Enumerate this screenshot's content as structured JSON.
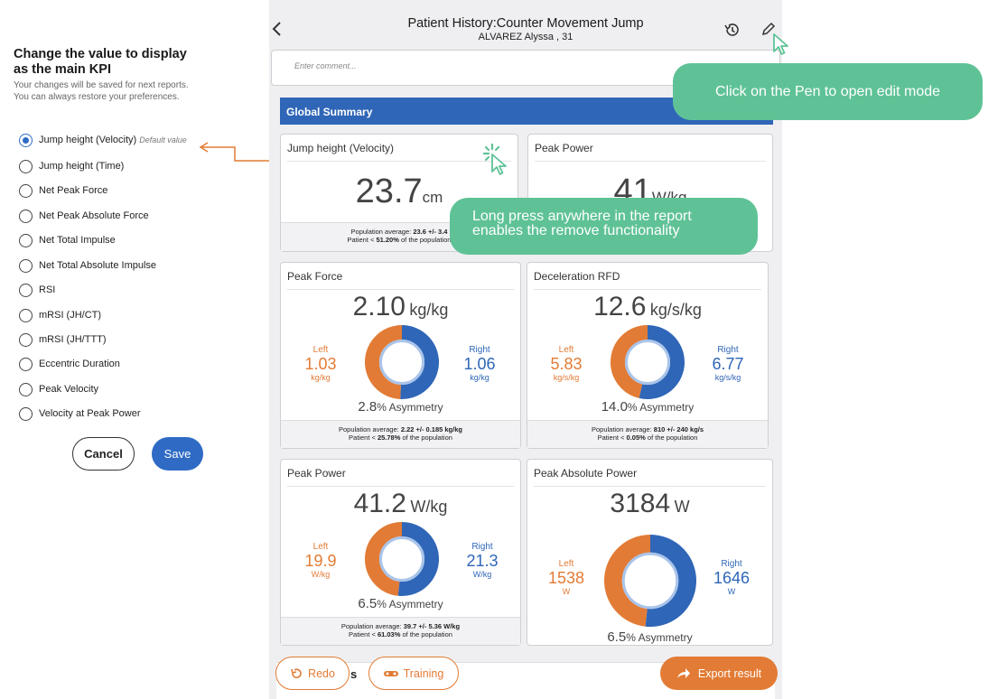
{
  "settings_panel": {
    "title": "Change the value to display as the main KPI",
    "description": "Your changes will be saved for next reports. You can always restore your preferences.",
    "options": [
      {
        "label": "Jump height (Velocity)",
        "note": "Default value",
        "selected": true
      },
      {
        "label": "Jump height (Time)"
      },
      {
        "label": "Net Peak Force"
      },
      {
        "label": "Net Peak Absolute Force"
      },
      {
        "label": "Net Total Impulse"
      },
      {
        "label": "Net Total Absolute Impulse"
      },
      {
        "label": "RSI"
      },
      {
        "label": "mRSI (JH/CT)"
      },
      {
        "label": "mRSI (JH/TTT)"
      },
      {
        "label": "Eccentric Duration"
      },
      {
        "label": "Peak Velocity"
      },
      {
        "label": "Velocity at Peak Power"
      }
    ],
    "cancel_label": "Cancel",
    "save_label": "Save"
  },
  "header": {
    "back_icon": "chevron-left-icon",
    "title": "Patient History:Counter Movement Jump",
    "subtitle": "ALVAREZ Alyssa , 31",
    "history_icon": "history-icon",
    "edit_icon": "pen-icon"
  },
  "comment": {
    "placeholder": "Enter comment..."
  },
  "summary": {
    "title": "Global Summary"
  },
  "cards": {
    "jump_height": {
      "title": "Jump height (Velocity)",
      "value": "23.7",
      "unit": "cm",
      "foot_line1_prefix": "Population average: ",
      "foot_line1_value": "23.6 +/- 3.4",
      "foot_line2_prefix": "Patient < ",
      "foot_line2_value": "51.20%",
      "foot_line2_suffix": " of the population"
    },
    "peak_power_top": {
      "title": "Peak Power",
      "value": "41",
      "unit": "W/kg"
    },
    "peak_force": {
      "title": "Peak Force",
      "value": "2.10",
      "unit": "kg/kg",
      "left_label": "Left",
      "left_value": "1.03",
      "left_unit": "kg/kg",
      "right_label": "Right",
      "right_value": "1.06",
      "right_unit": "kg/kg",
      "asymmetry_value": "2.8",
      "asymmetry_label": "% Asymmetry",
      "left_share": 0.493,
      "foot_line1_prefix": "Population average: ",
      "foot_line1_value": "2.22 +/- 0.185 kg/kg",
      "foot_line2_prefix": "Patient < ",
      "foot_line2_value": "25.78%",
      "foot_line2_suffix": " of the population"
    },
    "deceleration_rfd": {
      "title": "Deceleration RFD",
      "value": "12.6",
      "unit": "kg/s/kg",
      "left_label": "Left",
      "left_value": "5.83",
      "left_unit": "kg/s/kg",
      "right_label": "Right",
      "right_value": "6.77",
      "right_unit": "kg/s/kg",
      "asymmetry_value": "14.0",
      "asymmetry_label": "% Asymmetry",
      "left_share": 0.463,
      "foot_line1_prefix": "Population average: ",
      "foot_line1_value": "810 +/- 240 kg/s",
      "foot_line2_prefix": "Patient < ",
      "foot_line2_value": "0.05%",
      "foot_line2_suffix": " of the population"
    },
    "peak_power": {
      "title": "Peak Power",
      "value": "41.2",
      "unit": "W/kg",
      "left_label": "Left",
      "left_value": "19.9",
      "left_unit": "W/kg",
      "right_label": "Right",
      "right_value": "21.3",
      "right_unit": "W/kg",
      "asymmetry_value": "6.5",
      "asymmetry_label": "% Asymmetry",
      "left_share": 0.483,
      "foot_line1_prefix": "Population average: ",
      "foot_line1_value": "39.7 +/- 5.36 W/kg",
      "foot_line2_prefix": "Patient < ",
      "foot_line2_value": "61.03%",
      "foot_line2_suffix": " of the population"
    },
    "peak_absolute_power": {
      "title": "Peak Absolute Power",
      "value": "3184",
      "unit": "W",
      "left_label": "Left",
      "left_value": "1538",
      "left_unit": "W",
      "right_label": "Right",
      "right_value": "1646",
      "right_unit": "W",
      "asymmetry_value": "6.5",
      "asymmetry_label": "% Asymmetry",
      "left_share": 0.483
    }
  },
  "bottom": {
    "redo_label": "Redo",
    "redo_icon": "redo-icon",
    "training_label": "Training",
    "training_icon": "training-icon",
    "partial_text": "s",
    "export_label": "Export result",
    "export_icon": "share-arrow-icon"
  },
  "tooltips": {
    "pen_tip": "Click on the Pen to open edit mode",
    "long_press_tip": "Long press anywhere in the report enables the remove functionality"
  },
  "colors": {
    "blue": "#2f66b7",
    "orange": "#e27b35",
    "tooltip_green": "#5fc296"
  }
}
